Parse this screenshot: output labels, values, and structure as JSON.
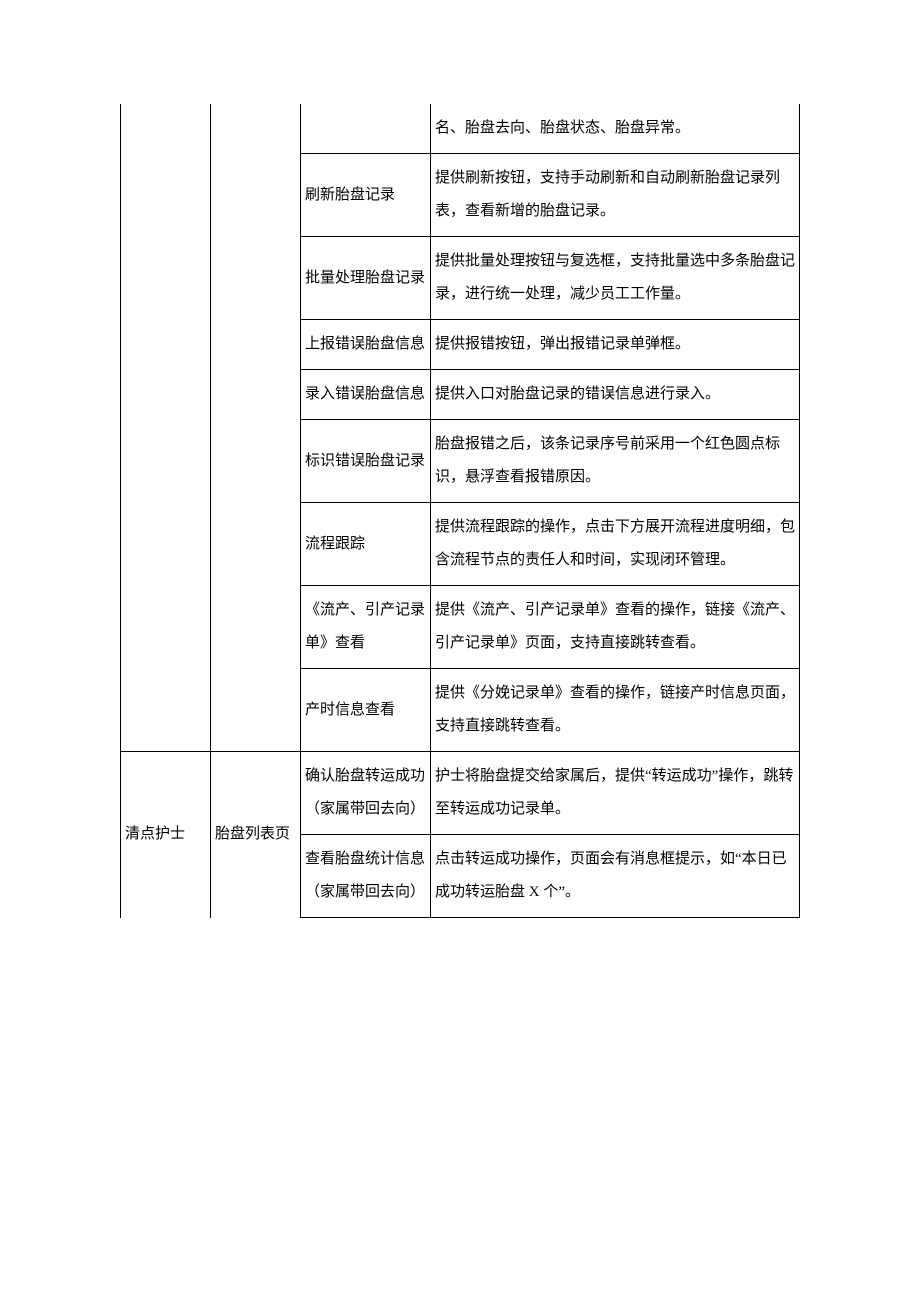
{
  "rows": [
    {
      "role": "",
      "page": "",
      "func": "",
      "desc": "名、胎盘去向、胎盘状态、胎盘异常。",
      "roleSpan": 9,
      "pageSpan": 9,
      "roleOpen": true,
      "pageOpen": true
    },
    {
      "func": "刷新胎盘记录",
      "desc": "提供刷新按钮，支持手动刷新和自动刷新胎盘记录列表，查看新增的胎盘记录。"
    },
    {
      "func": "批量处理胎盘记录",
      "desc": "提供批量处理按钮与复选框，支持批量选中多条胎盘记录，进行统一处理，减少员工工作量。"
    },
    {
      "func": "上报错误胎盘信息",
      "desc": "提供报错按钮，弹出报错记录单弹框。"
    },
    {
      "func": "录入错误胎盘信息",
      "desc": "提供入口对胎盘记录的错误信息进行录入。"
    },
    {
      "func": "标识错误胎盘记录",
      "desc": "胎盘报错之后，该条记录序号前采用一个红色圆点标识，悬浮查看报错原因。"
    },
    {
      "func": "流程跟踪",
      "desc": "提供流程跟踪的操作，点击下方展开流程进度明细，包含流程节点的责任人和时间，实现闭环管理。"
    },
    {
      "func": "《流产、引产记录单》查看",
      "desc": "提供《流产、引产记录单》查看的操作，链接《流产、引产记录单》页面，支持直接跳转查看。"
    },
    {
      "func": "产时信息查看",
      "desc": "提供《分娩记录单》查看的操作，链接产时信息页面，支持直接跳转查看。"
    },
    {
      "role": "清点护士",
      "page": "胎盘列表页",
      "func": "确认胎盘转运成功\n（家属带回去向）",
      "desc": "护士将胎盘提交给家属后，提供“转运成功”操作，跳转至转运成功记录单。",
      "roleSpan": 2,
      "pageSpan": 2,
      "roleOpenBottom": true,
      "pageOpenBottom": true
    },
    {
      "func": "查看胎盘统计信息\n（家属带回去向）",
      "desc": "点击转运成功操作，页面会有消息框提示，如“本日已成功转运胎盘 X 个”。"
    }
  ]
}
